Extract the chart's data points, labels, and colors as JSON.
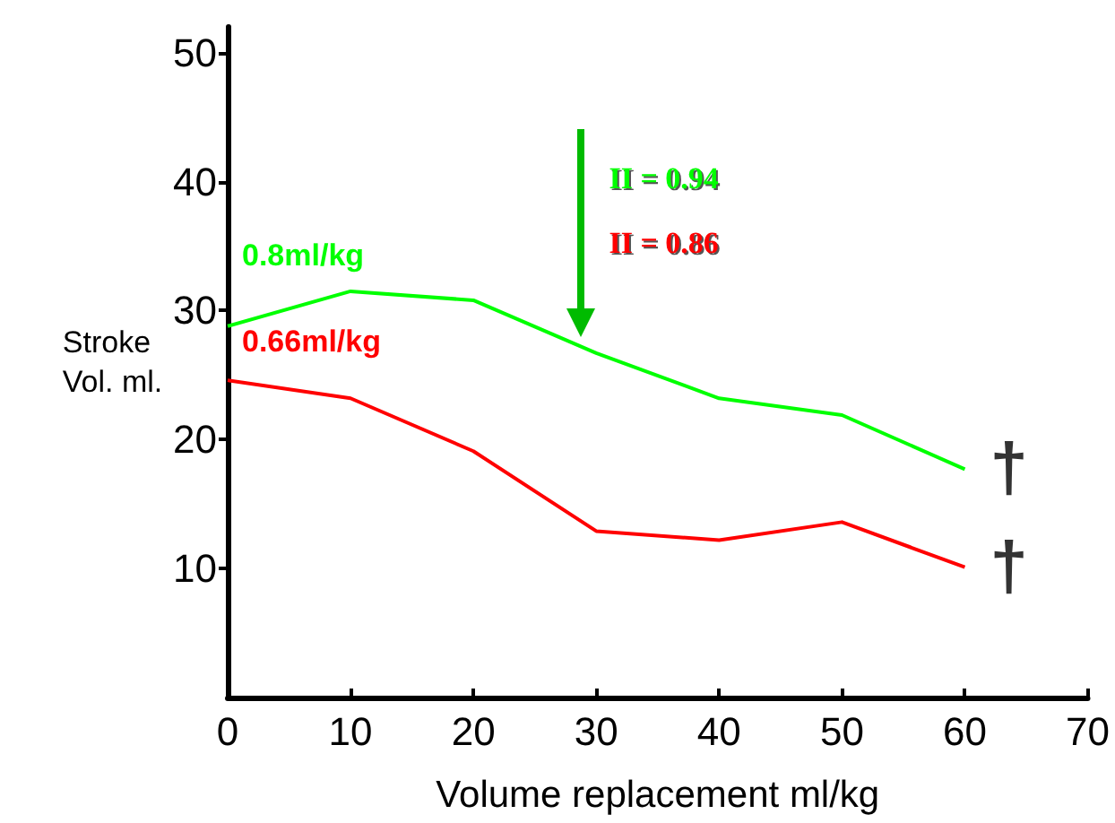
{
  "chart_data": {
    "type": "line",
    "xlabel": "Volume replacement ml/kg",
    "ylabel": "Stroke\nVol. ml.",
    "x": [
      0,
      10,
      20,
      30,
      40,
      50,
      60
    ],
    "series": [
      {
        "name": "0.8ml/kg",
        "color": "#00ff00",
        "values": [
          28.8,
          31.5,
          30.8,
          26.7,
          23.2,
          21.9,
          17.7
        ]
      },
      {
        "name": "0.66ml/kg",
        "color": "#ff0000",
        "values": [
          24.6,
          23.2,
          19.1,
          12.9,
          12.2,
          13.6,
          10.1
        ]
      }
    ],
    "xlim": [
      0,
      70
    ],
    "xticks": [
      0,
      10,
      20,
      30,
      40,
      50,
      60,
      70
    ],
    "ylim": [
      0,
      52
    ],
    "yticks": [
      10,
      20,
      30,
      40,
      50
    ],
    "annotations": [
      "II = 0.94",
      "II = 0.86",
      {
        "text": "†",
        "x": 60,
        "y": 17.7
      },
      {
        "text": "†",
        "x": 60,
        "y": 10.1
      }
    ],
    "grid": false,
    "legend": false,
    "marker": "none",
    "line_style": "solid"
  }
}
